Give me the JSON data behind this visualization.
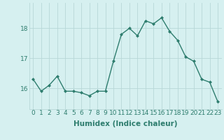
{
  "x": [
    0,
    1,
    2,
    3,
    4,
    5,
    6,
    7,
    8,
    9,
    10,
    11,
    12,
    13,
    14,
    15,
    16,
    17,
    18,
    19,
    20,
    21,
    22,
    23
  ],
  "y": [
    16.3,
    15.9,
    16.1,
    16.4,
    15.9,
    15.9,
    15.85,
    15.75,
    15.9,
    15.9,
    16.9,
    17.8,
    18.0,
    17.75,
    18.25,
    18.15,
    18.35,
    17.9,
    17.6,
    17.05,
    16.9,
    16.3,
    16.2,
    15.55
  ],
  "line_color": "#2e7d6e",
  "marker": "D",
  "markersize": 2.0,
  "linewidth": 1.0,
  "xlabel": "Humidex (Indice chaleur)",
  "xlabel_fontsize": 7.5,
  "ylabel_ticks": [
    16,
    17,
    18
  ],
  "xlim": [
    -0.5,
    23.5
  ],
  "ylim": [
    15.3,
    18.85
  ],
  "bg_color": "#d6f0f0",
  "grid_color": "#b8d8d8",
  "tick_fontsize": 6.5,
  "text_color": "#2e7d6e"
}
